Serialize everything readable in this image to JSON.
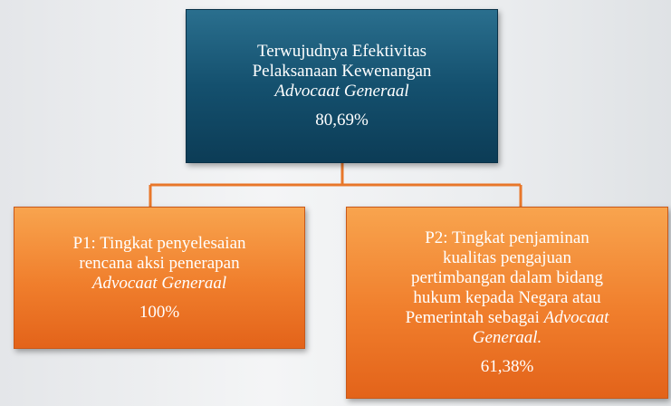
{
  "nodes": [
    {
      "lines": [
        [
          {
            "text": "Terwujudnya Efektivitas",
            "italic": false
          }
        ],
        [
          {
            "text": "Pelaksanaan Kewenangan",
            "italic": false
          }
        ],
        [
          {
            "text": "Advocaat Generaal",
            "italic": true
          }
        ]
      ],
      "value": "80,69%"
    },
    {
      "lines": [
        [
          {
            "text": "P1: Tingkat penyelesaian",
            "italic": false
          }
        ],
        [
          {
            "text": "rencana aksi penerapan",
            "italic": false
          }
        ],
        [
          {
            "text": "Advocaat Generaal",
            "italic": true
          }
        ]
      ],
      "value": "100%"
    },
    {
      "lines": [
        [
          {
            "text": "P2: Tingkat penjaminan",
            "italic": false
          }
        ],
        [
          {
            "text": "kualitas pengajuan",
            "italic": false
          }
        ],
        [
          {
            "text": "pertimbangan dalam bidang",
            "italic": false
          }
        ],
        [
          {
            "text": "hukum kepada Negara atau",
            "italic": false
          }
        ],
        [
          {
            "text": "Pemerintah sebagai ",
            "italic": false
          },
          {
            "text": "Advocaat",
            "italic": true
          }
        ],
        [
          {
            "text": "Generaal.",
            "italic": true
          }
        ]
      ],
      "value": "61,38%"
    }
  ]
}
